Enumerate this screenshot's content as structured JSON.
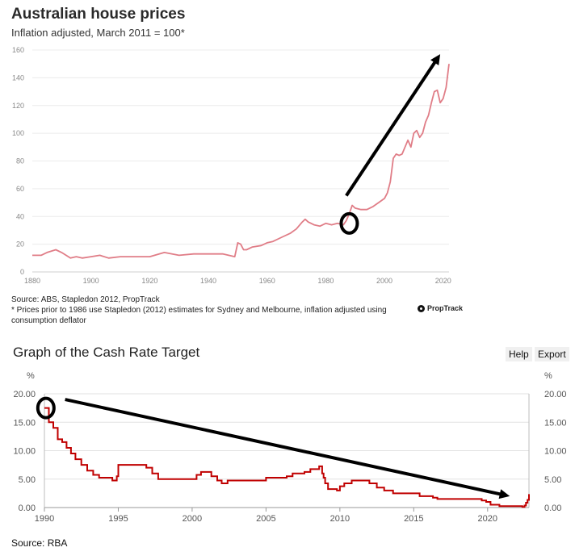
{
  "chart_data": [
    {
      "type": "line",
      "title": "Australian house prices",
      "subtitle": "Inflation adjusted, March 2011 = 100*",
      "xlabel": "",
      "ylabel": "",
      "xlim": [
        1880,
        2022
      ],
      "ylim": [
        0,
        160
      ],
      "x_ticks": [
        1880,
        1900,
        1920,
        1940,
        1960,
        1980,
        2000,
        2020
      ],
      "y_ticks": [
        0,
        20,
        40,
        60,
        80,
        100,
        120,
        140,
        160
      ],
      "color": "#e07d87",
      "series": [
        {
          "name": "Australian house prices",
          "x": [
            1880,
            1883,
            1885,
            1888,
            1890,
            1893,
            1895,
            1897,
            1900,
            1903,
            1906,
            1910,
            1915,
            1920,
            1925,
            1930,
            1935,
            1940,
            1945,
            1949,
            1950,
            1951,
            1952,
            1953,
            1955,
            1958,
            1960,
            1962,
            1965,
            1968,
            1970,
            1972,
            1973,
            1974,
            1975,
            1976,
            1978,
            1980,
            1982,
            1984,
            1986,
            1987,
            1988,
            1989,
            1990,
            1992,
            1994,
            1996,
            1998,
            2000,
            2001,
            2002,
            2003,
            2004,
            2005,
            2006,
            2007,
            2008,
            2009,
            2010,
            2011,
            2012,
            2013,
            2014,
            2015,
            2016,
            2017,
            2018,
            2019,
            2020,
            2021,
            2022
          ],
          "values": [
            12,
            12,
            14,
            16,
            14,
            10,
            11,
            10,
            11,
            12,
            10,
            11,
            11,
            11,
            14,
            12,
            13,
            13,
            13,
            11,
            21,
            20,
            16,
            16,
            18,
            19,
            21,
            22,
            25,
            28,
            31,
            36,
            38,
            36,
            35,
            34,
            33,
            35,
            34,
            35,
            34,
            37,
            42,
            48,
            46,
            45,
            45,
            47,
            50,
            53,
            57,
            65,
            82,
            85,
            84,
            85,
            90,
            95,
            90,
            100,
            102,
            97,
            100,
            108,
            113,
            122,
            130,
            131,
            122,
            125,
            133,
            150
          ]
        }
      ],
      "annotations": [
        {
          "type": "arrow",
          "from": [
            1987,
            55
          ],
          "to": [
            2019,
            157
          ]
        },
        {
          "type": "circle",
          "x": 1988,
          "y": 35
        }
      ],
      "source": "Source: ABS, Stapledon 2012, PropTrack",
      "footnote": "* Prices prior to 1986 use Stapledon (2012) estimates for Sydney and Melbourne, inflation adjusted using consumption deflator",
      "logo_text": "PropTrack"
    },
    {
      "type": "line",
      "title": "Graph of the Cash Rate Target",
      "xlabel": "",
      "ylabel": "%",
      "y_unit_left": "%",
      "y_unit_right": "%",
      "xlim": [
        1990,
        2022.8
      ],
      "ylim": [
        0,
        20
      ],
      "x_ticks": [
        1990,
        1995,
        2000,
        2005,
        2010,
        2015,
        2020
      ],
      "y_ticks": [
        "0.00",
        "5.00",
        "10.00",
        "15.00",
        "20.00"
      ],
      "color": "#c00000",
      "series": [
        {
          "name": "Cash Rate Target",
          "x": [
            1990.0,
            1990.3,
            1990.6,
            1990.9,
            1991.2,
            1991.5,
            1991.8,
            1992.1,
            1992.5,
            1992.9,
            1993.3,
            1993.7,
            1994.6,
            1994.9,
            1995.0,
            1996.6,
            1996.9,
            1997.3,
            1997.7,
            1998.9,
            2000.0,
            2000.3,
            2000.6,
            2001.0,
            2001.3,
            2001.7,
            2002.0,
            2002.4,
            2003.9,
            2005.0,
            2006.4,
            2006.8,
            2007.6,
            2008.0,
            2008.6,
            2008.8,
            2008.9,
            2009.0,
            2009.2,
            2009.8,
            2010.0,
            2010.3,
            2010.8,
            2011.8,
            2012.0,
            2012.5,
            2013.0,
            2013.6,
            2015.0,
            2015.4,
            2016.3,
            2016.6,
            2019.4,
            2019.6,
            2019.9,
            2020.2,
            2020.8,
            2022.35,
            2022.5,
            2022.6,
            2022.7,
            2022.8
          ],
          "values": [
            17.5,
            15.0,
            14.0,
            12.0,
            11.5,
            10.5,
            9.5,
            8.5,
            7.5,
            6.5,
            5.75,
            5.25,
            4.75,
            5.5,
            7.5,
            7.5,
            7.0,
            6.0,
            5.0,
            5.0,
            5.0,
            5.75,
            6.25,
            6.25,
            5.5,
            4.75,
            4.25,
            4.75,
            4.75,
            5.25,
            5.5,
            6.0,
            6.25,
            6.75,
            7.25,
            6.0,
            5.25,
            4.25,
            3.25,
            3.0,
            3.75,
            4.25,
            4.75,
            4.75,
            4.25,
            3.5,
            3.0,
            2.5,
            2.5,
            2.0,
            1.75,
            1.5,
            1.5,
            1.25,
            1.0,
            0.5,
            0.25,
            0.1,
            0.35,
            0.85,
            1.35,
            2.35
          ]
        }
      ],
      "annotations": [
        {
          "type": "arrow",
          "from": [
            1991.4,
            19.0
          ],
          "to": [
            2021.5,
            2.0
          ]
        },
        {
          "type": "circle",
          "x": 1990.1,
          "y": 17.5
        }
      ],
      "source": "Source: RBA"
    }
  ],
  "toolbar": {
    "help_label": "Help",
    "export_label": "Export"
  }
}
